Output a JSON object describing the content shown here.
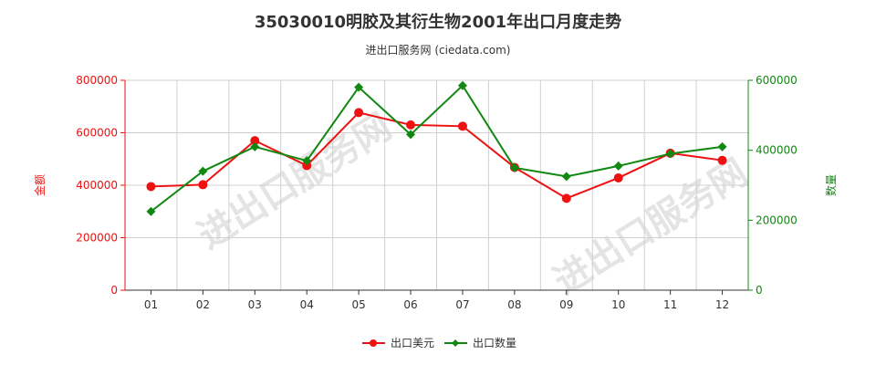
{
  "title": "35030010明胶及其衍生物2001年出口月度走势",
  "subtitle": "进出口服务网 (ciedata.com)",
  "watermark": "进出口服务网",
  "chart_data": {
    "type": "line",
    "categories": [
      "01",
      "02",
      "03",
      "04",
      "05",
      "06",
      "07",
      "08",
      "09",
      "10",
      "11",
      "12"
    ],
    "series": [
      {
        "name": "出口美元",
        "axis": "left",
        "color": "#ee1111",
        "values": [
          395000,
          402000,
          570000,
          475000,
          677000,
          630000,
          625000,
          468000,
          350000,
          428000,
          522000,
          495000
        ]
      },
      {
        "name": "出口数量",
        "axis": "right",
        "color": "#118811",
        "values": [
          225000,
          340000,
          410000,
          370000,
          580000,
          445000,
          585000,
          350000,
          325000,
          355000,
          390000,
          410000
        ]
      }
    ],
    "ylabel_left": "金额",
    "ylabel_right": "数量",
    "ylim_left": [
      0,
      800000
    ],
    "ylim_right": [
      0,
      600000
    ],
    "yticks_left": [
      "0",
      "200000",
      "400000",
      "600000",
      "800000"
    ],
    "yticks_right": [
      "0",
      "200000",
      "400000",
      "600000"
    ],
    "legend_position": "bottom-center",
    "grid": true
  }
}
